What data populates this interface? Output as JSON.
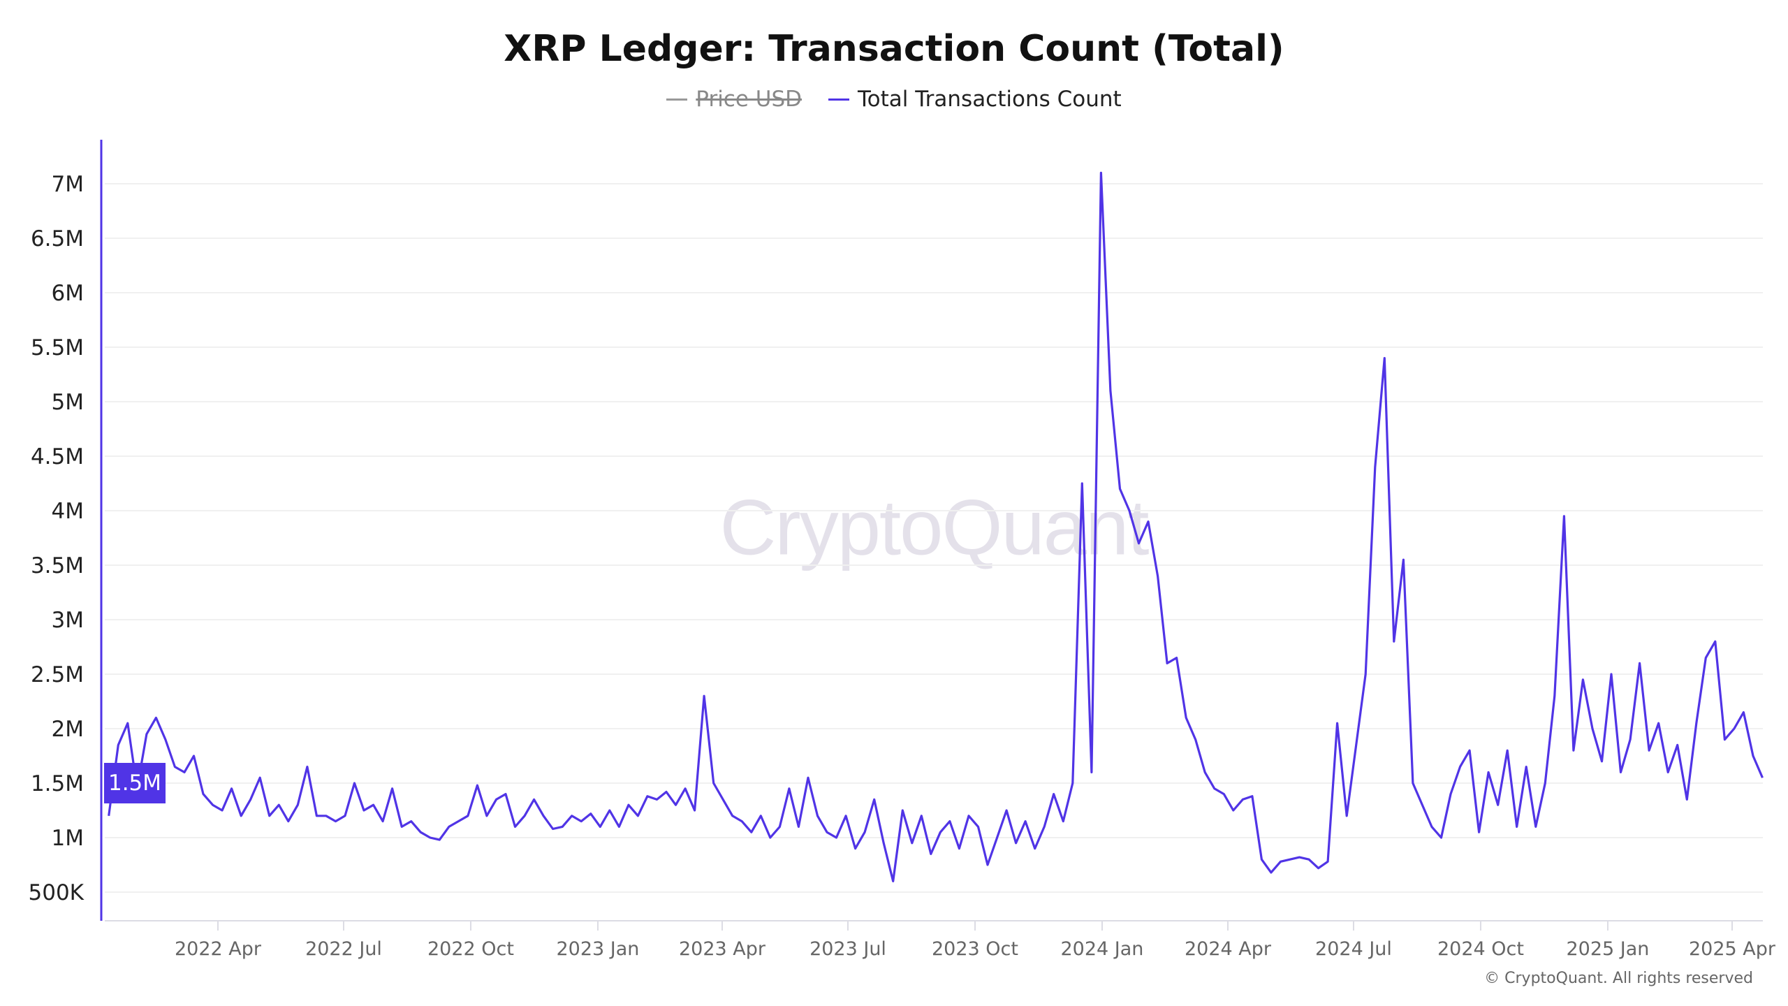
{
  "title": "XRP Ledger: Transaction Count (Total)",
  "legend": [
    {
      "label": "Price USD",
      "color": "#999999",
      "hidden": true
    },
    {
      "label": "Total Transactions Count",
      "color": "#5034e6",
      "hidden": false
    }
  ],
  "watermark": "CryptoQuant",
  "copyright": "© CryptoQuant. All rights reserved",
  "highlight_label": "1.5M",
  "chart_data": {
    "type": "line",
    "title": "XRP Ledger: Transaction Count (Total)",
    "series_name": "Total Transactions Count",
    "unit": "millions of transactions",
    "x_start": "2022-01-12",
    "x_end": "2025-04-23",
    "ylim": [
      0.35,
      7.4
    ],
    "y_ticks": [
      0.5,
      1,
      1.5,
      2,
      2.5,
      3,
      3.5,
      4,
      4.5,
      5,
      5.5,
      6,
      6.5,
      7
    ],
    "y_tick_labels": [
      "500K",
      "1M",
      "1.5M",
      "2M",
      "2.5M",
      "3M",
      "3.5M",
      "4M",
      "4.5M",
      "5M",
      "5.5M",
      "6M",
      "6.5M",
      "7M"
    ],
    "x_ticks": [
      "2022-04-01",
      "2022-07-01",
      "2022-10-01",
      "2023-01-01",
      "2023-04-01",
      "2023-07-01",
      "2023-10-01",
      "2024-01-01",
      "2024-04-01",
      "2024-07-01",
      "2024-10-01",
      "2025-01-01",
      "2025-04-01"
    ],
    "x_tick_labels": [
      "2022 Apr",
      "2022 Jul",
      "2022 Oct",
      "2023 Jan",
      "2023 Apr",
      "2023 Jul",
      "2023 Oct",
      "2024 Jan",
      "2024 Apr",
      "2024 Jul",
      "2024 Oct",
      "2025 Jan",
      "2025 Apr"
    ],
    "grid": true,
    "legend_position": "top-center",
    "values": [
      1.2,
      1.85,
      2.05,
      1.45,
      1.95,
      2.1,
      1.9,
      1.65,
      1.6,
      1.75,
      1.4,
      1.3,
      1.25,
      1.45,
      1.2,
      1.35,
      1.55,
      1.2,
      1.3,
      1.15,
      1.3,
      1.65,
      1.2,
      1.2,
      1.15,
      1.2,
      1.5,
      1.25,
      1.3,
      1.15,
      1.45,
      1.1,
      1.15,
      1.05,
      1.0,
      0.98,
      1.1,
      1.15,
      1.2,
      1.48,
      1.2,
      1.35,
      1.4,
      1.1,
      1.2,
      1.35,
      1.2,
      1.08,
      1.1,
      1.2,
      1.15,
      1.22,
      1.1,
      1.25,
      1.1,
      1.3,
      1.2,
      1.38,
      1.35,
      1.42,
      1.3,
      1.45,
      1.25,
      2.3,
      1.5,
      1.35,
      1.2,
      1.15,
      1.05,
      1.2,
      1.0,
      1.1,
      1.45,
      1.1,
      1.55,
      1.2,
      1.05,
      1.0,
      1.2,
      0.9,
      1.05,
      1.35,
      0.95,
      0.6,
      1.25,
      0.95,
      1.2,
      0.85,
      1.05,
      1.15,
      0.9,
      1.2,
      1.1,
      0.75,
      1.0,
      1.25,
      0.95,
      1.15,
      0.9,
      1.1,
      1.4,
      1.15,
      1.5,
      4.25,
      1.6,
      7.1,
      5.1,
      4.2,
      4.0,
      3.7,
      3.9,
      3.4,
      2.6,
      2.65,
      2.1,
      1.9,
      1.6,
      1.45,
      1.4,
      1.25,
      1.35,
      1.38,
      0.8,
      0.68,
      0.78,
      0.8,
      0.82,
      0.8,
      0.72,
      0.78,
      2.05,
      1.2,
      1.85,
      2.5,
      4.4,
      5.4,
      2.8,
      3.55,
      1.5,
      1.3,
      1.1,
      1.0,
      1.4,
      1.65,
      1.8,
      1.05,
      1.6,
      1.3,
      1.8,
      1.1,
      1.65,
      1.1,
      1.5,
      2.3,
      3.95,
      1.8,
      2.45,
      2.0,
      1.7,
      2.5,
      1.6,
      1.9,
      2.6,
      1.8,
      2.05,
      1.6,
      1.85,
      1.35,
      2.05,
      2.65,
      2.8,
      1.9,
      2.0,
      2.15,
      1.75,
      1.55
    ]
  }
}
